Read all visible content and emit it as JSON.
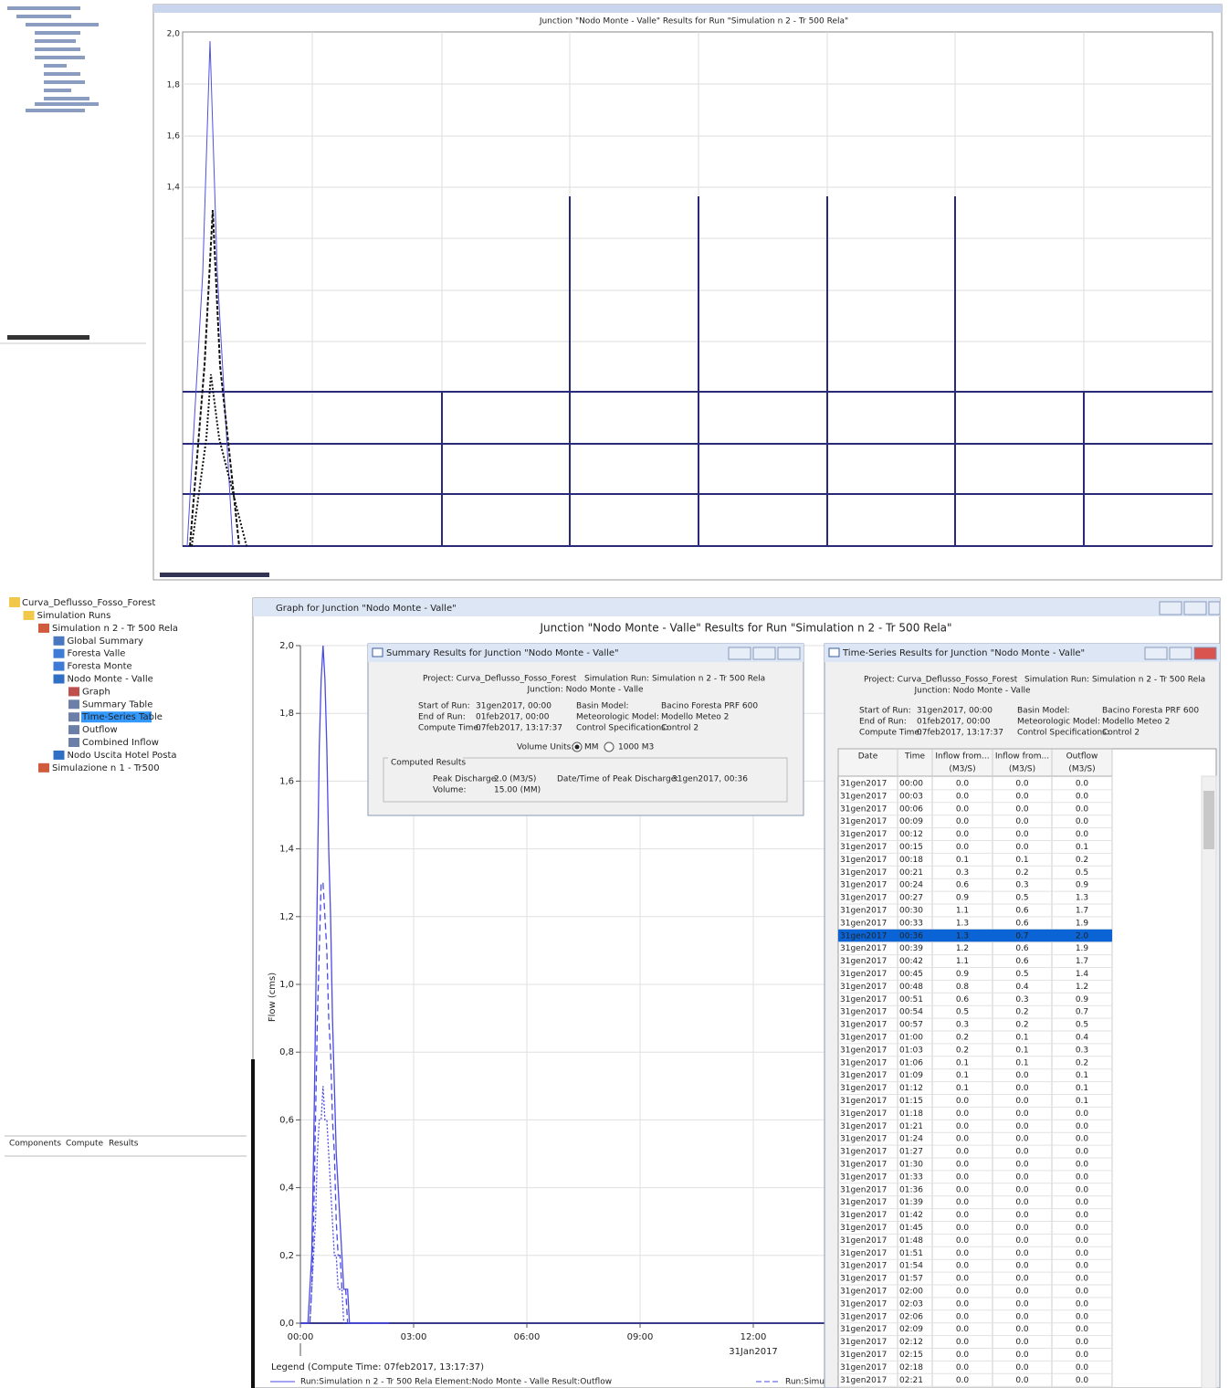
{
  "top_panel": {
    "title": "Junction \"Nodo Monte - Valle\" Results for Run \"Simulation n 2 - Tr 500 Rela\"",
    "yticks": [
      "2,0",
      "1,8",
      "1,6",
      "1,4"
    ]
  },
  "tree": {
    "project": "Curva_Deflusso_Fosso_Forest",
    "items": [
      "Simulation Runs",
      "Simulation n 2 - Tr 500 Rela",
      "Global Summary",
      "Foresta Valle",
      "Foresta Monte",
      "Nodo Monte - Valle",
      "Graph",
      "Summary Table",
      "Time-Series Table",
      "Outflow",
      "Combined Inflow",
      "Nodo Uscita Hotel Posta",
      "Simulazione n 1 - Tr500"
    ],
    "selected_item": 8,
    "tabs": [
      "Components",
      "Compute",
      "Results"
    ]
  },
  "graph": {
    "window_title": "Graph for Junction \"Nodo Monte - Valle\"",
    "title": "Junction \"Nodo Monte - Valle\" Results for Run \"Simulation n 2 - Tr 500 Rela\"",
    "y_label": "Flow (cms)",
    "ylim": [
      0,
      2
    ],
    "yticks": [
      {
        "value": 0,
        "label": "0,0"
      },
      {
        "value": 0.2,
        "label": "0,2"
      },
      {
        "value": 0.4,
        "label": "0,4"
      },
      {
        "value": 0.6,
        "label": "0,6"
      },
      {
        "value": 0.8,
        "label": "0,8"
      },
      {
        "value": 1,
        "label": "1,0"
      },
      {
        "value": 1.2,
        "label": "1,2"
      },
      {
        "value": 1.4,
        "label": "1,4"
      },
      {
        "value": 1.6,
        "label": "1,6"
      },
      {
        "value": 1.8,
        "label": "1,8"
      },
      {
        "value": 2,
        "label": "2,0"
      }
    ],
    "xlim": [
      0,
      1440
    ],
    "xticks": [
      {
        "value": 0,
        "label": "00:00"
      },
      {
        "value": 180,
        "label": "03:00"
      },
      {
        "value": 360,
        "label": "06:00"
      },
      {
        "value": 540,
        "label": "09:00"
      },
      {
        "value": 720,
        "label": "12:00"
      }
    ],
    "date_label": "31Jan2017",
    "legend_title": "Legend (Compute Time: 07feb2017, 13:17:37)",
    "legend_items": [
      "Run:Simulation n 2 - Tr 500 Rela Element:Nodo Monte - Valle Result:Outflow",
      "Run:Simu"
    ]
  },
  "summary": {
    "window_title": "Summary Results for Junction \"Nodo Monte - Valle\"",
    "project": "Project: Curva_Deflusso_Fosso_Forest",
    "run": "Simulation Run: Simulation n 2 - Tr 500 Rela",
    "junction": "Junction: Nodo Monte - Valle",
    "start_label": "Start of Run:",
    "start": "31gen2017, 00:00",
    "end_label": "End of Run:",
    "end": "01feb2017, 00:00",
    "compute_label": "Compute Time:",
    "compute": "07feb2017, 13:17:37",
    "basin_label": "Basin Model:",
    "basin": "Bacino Foresta PRF 600",
    "met_label": "Meteorologic Model:",
    "met": "Modello Meteo 2",
    "control_label": "Control Specifications:",
    "control": "Control 2",
    "volume_units": "Volume Units:",
    "unit_mm": "MM",
    "unit_1000": "1000 M3",
    "computed": "Computed Results",
    "peak_label": "Peak Discharge:",
    "peak": "2.0 (M3/S)",
    "peak_time_label": "Date/Time of Peak Discharge:",
    "peak_time": "31gen2017, 00:36",
    "volume_label": "Volume:",
    "volume": "15.00 (MM)"
  },
  "timeseries": {
    "window_title": "Time-Series Results for Junction \"Nodo Monte - Valle\"",
    "project": "Project: Curva_Deflusso_Fosso_Forest",
    "run": "Simulation Run: Simulation n 2 - Tr 500 Rela",
    "junction": "Junction: Nodo Monte - Valle",
    "start_label": "Start of Run:",
    "start": "31gen2017, 00:00",
    "end_label": "End of Run:",
    "end": "01feb2017, 00:00",
    "compute_label": "Compute Time:",
    "compute": "07feb2017, 13:17:37",
    "basin_label": "Basin Model:",
    "basin": "Bacino Foresta PRF 600",
    "met_label": "Meteorologic Model:",
    "met": "Modello Meteo 2",
    "control_label": "Control Specifications:",
    "control": "Control 2",
    "columns": [
      {
        "name": "Date"
      },
      {
        "name": "Time"
      },
      {
        "name": "Inflow from...",
        "unit": "(M3/S)"
      },
      {
        "name": "Inflow from...",
        "unit": "(M3/S)"
      },
      {
        "name": "Outflow",
        "unit": "(M3/S)"
      }
    ],
    "selected_row": 12,
    "rows": [
      [
        "31gen2017",
        "00:00",
        "0.0",
        "0.0",
        "0.0"
      ],
      [
        "31gen2017",
        "00:03",
        "0.0",
        "0.0",
        "0.0"
      ],
      [
        "31gen2017",
        "00:06",
        "0.0",
        "0.0",
        "0.0"
      ],
      [
        "31gen2017",
        "00:09",
        "0.0",
        "0.0",
        "0.0"
      ],
      [
        "31gen2017",
        "00:12",
        "0.0",
        "0.0",
        "0.0"
      ],
      [
        "31gen2017",
        "00:15",
        "0.0",
        "0.0",
        "0.1"
      ],
      [
        "31gen2017",
        "00:18",
        "0.1",
        "0.1",
        "0.2"
      ],
      [
        "31gen2017",
        "00:21",
        "0.3",
        "0.2",
        "0.5"
      ],
      [
        "31gen2017",
        "00:24",
        "0.6",
        "0.3",
        "0.9"
      ],
      [
        "31gen2017",
        "00:27",
        "0.9",
        "0.5",
        "1.3"
      ],
      [
        "31gen2017",
        "00:30",
        "1.1",
        "0.6",
        "1.7"
      ],
      [
        "31gen2017",
        "00:33",
        "1.3",
        "0.6",
        "1.9"
      ],
      [
        "31gen2017",
        "00:36",
        "1.3",
        "0.7",
        "2.0"
      ],
      [
        "31gen2017",
        "00:39",
        "1.2",
        "0.6",
        "1.9"
      ],
      [
        "31gen2017",
        "00:42",
        "1.1",
        "0.6",
        "1.7"
      ],
      [
        "31gen2017",
        "00:45",
        "0.9",
        "0.5",
        "1.4"
      ],
      [
        "31gen2017",
        "00:48",
        "0.8",
        "0.4",
        "1.2"
      ],
      [
        "31gen2017",
        "00:51",
        "0.6",
        "0.3",
        "0.9"
      ],
      [
        "31gen2017",
        "00:54",
        "0.5",
        "0.2",
        "0.7"
      ],
      [
        "31gen2017",
        "00:57",
        "0.3",
        "0.2",
        "0.5"
      ],
      [
        "31gen2017",
        "01:00",
        "0.2",
        "0.1",
        "0.4"
      ],
      [
        "31gen2017",
        "01:03",
        "0.2",
        "0.1",
        "0.3"
      ],
      [
        "31gen2017",
        "01:06",
        "0.1",
        "0.1",
        "0.2"
      ],
      [
        "31gen2017",
        "01:09",
        "0.1",
        "0.0",
        "0.1"
      ],
      [
        "31gen2017",
        "01:12",
        "0.1",
        "0.0",
        "0.1"
      ],
      [
        "31gen2017",
        "01:15",
        "0.0",
        "0.0",
        "0.1"
      ],
      [
        "31gen2017",
        "01:18",
        "0.0",
        "0.0",
        "0.0"
      ],
      [
        "31gen2017",
        "01:21",
        "0.0",
        "0.0",
        "0.0"
      ],
      [
        "31gen2017",
        "01:24",
        "0.0",
        "0.0",
        "0.0"
      ],
      [
        "31gen2017",
        "01:27",
        "0.0",
        "0.0",
        "0.0"
      ],
      [
        "31gen2017",
        "01:30",
        "0.0",
        "0.0",
        "0.0"
      ],
      [
        "31gen2017",
        "01:33",
        "0.0",
        "0.0",
        "0.0"
      ],
      [
        "31gen2017",
        "01:36",
        "0.0",
        "0.0",
        "0.0"
      ],
      [
        "31gen2017",
        "01:39",
        "0.0",
        "0.0",
        "0.0"
      ],
      [
        "31gen2017",
        "01:42",
        "0.0",
        "0.0",
        "0.0"
      ],
      [
        "31gen2017",
        "01:45",
        "0.0",
        "0.0",
        "0.0"
      ],
      [
        "31gen2017",
        "01:48",
        "0.0",
        "0.0",
        "0.0"
      ],
      [
        "31gen2017",
        "01:51",
        "0.0",
        "0.0",
        "0.0"
      ],
      [
        "31gen2017",
        "01:54",
        "0.0",
        "0.0",
        "0.0"
      ],
      [
        "31gen2017",
        "01:57",
        "0.0",
        "0.0",
        "0.0"
      ],
      [
        "31gen2017",
        "02:00",
        "0.0",
        "0.0",
        "0.0"
      ],
      [
        "31gen2017",
        "02:03",
        "0.0",
        "0.0",
        "0.0"
      ],
      [
        "31gen2017",
        "02:06",
        "0.0",
        "0.0",
        "0.0"
      ],
      [
        "31gen2017",
        "02:09",
        "0.0",
        "0.0",
        "0.0"
      ],
      [
        "31gen2017",
        "02:12",
        "0.0",
        "0.0",
        "0.0"
      ],
      [
        "31gen2017",
        "02:15",
        "0.0",
        "0.0",
        "0.0"
      ],
      [
        "31gen2017",
        "02:18",
        "0.0",
        "0.0",
        "0.0"
      ],
      [
        "31gen2017",
        "02:21",
        "0.0",
        "0.0",
        "0.0"
      ]
    ]
  }
}
